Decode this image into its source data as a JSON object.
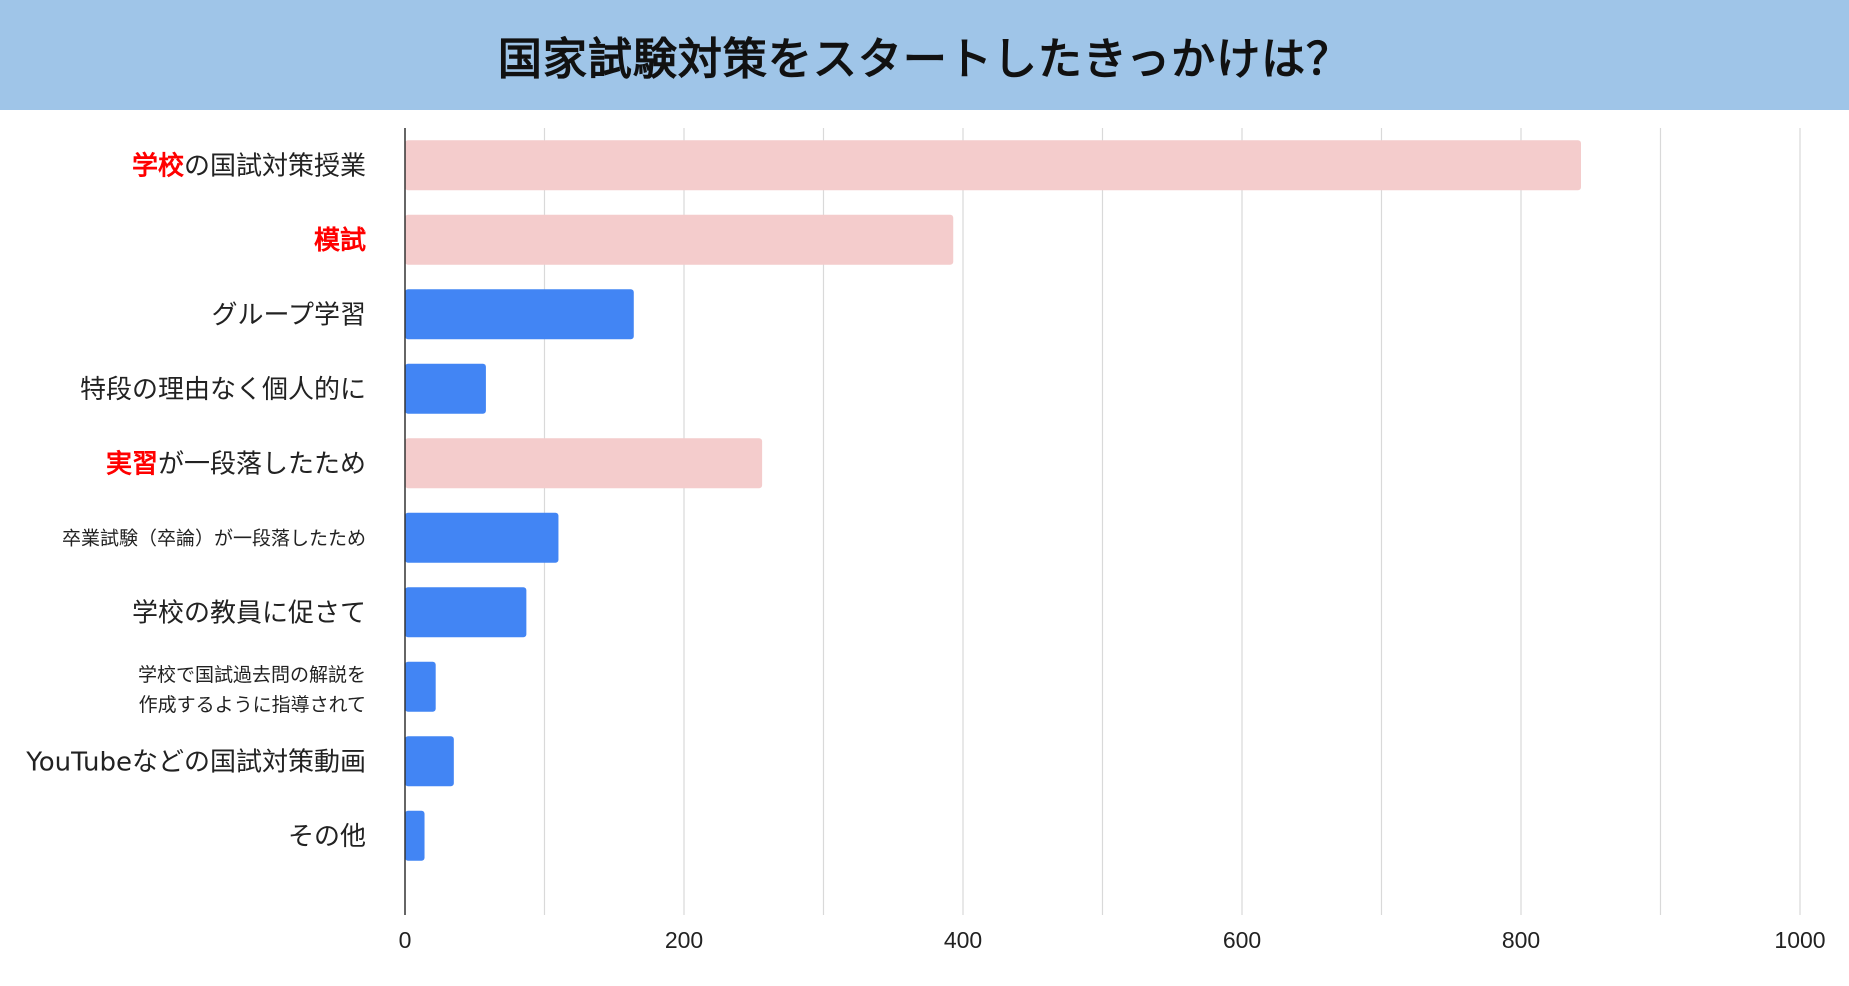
{
  "chart_data": {
    "type": "bar",
    "orientation": "horizontal",
    "title": "国家試験対策をスタートしたきっかけは？",
    "xlabel": "",
    "ylabel": "",
    "xlim": [
      0,
      1000
    ],
    "ticks": [
      0,
      200,
      400,
      600,
      800,
      1000
    ],
    "grid": true,
    "highlight_color": "#f4cccc",
    "normal_color": "#4285f4",
    "emphasis_text_color": "#ff0000",
    "categories": [
      {
        "segments": [
          {
            "text": "学校",
            "emphasis": true
          },
          {
            "text": "の国試対策授業",
            "emphasis": false
          }
        ],
        "value": 843,
        "highlight": true,
        "size": "normal"
      },
      {
        "segments": [
          {
            "text": "模試",
            "emphasis": true
          }
        ],
        "value": 393,
        "highlight": true,
        "size": "normal"
      },
      {
        "segments": [
          {
            "text": "グループ学習",
            "emphasis": false
          }
        ],
        "value": 164,
        "highlight": false,
        "size": "normal"
      },
      {
        "segments": [
          {
            "text": "特段の理由なく個人的に",
            "emphasis": false
          }
        ],
        "value": 58,
        "highlight": false,
        "size": "normal"
      },
      {
        "segments": [
          {
            "text": "実習",
            "emphasis": true
          },
          {
            "text": "が一段落したため",
            "emphasis": false
          }
        ],
        "value": 256,
        "highlight": true,
        "size": "normal"
      },
      {
        "segments": [
          {
            "text": "卒業試験（卒論）が一段落したため",
            "emphasis": false
          }
        ],
        "value": 110,
        "highlight": false,
        "size": "small"
      },
      {
        "segments": [
          {
            "text": "学校の教員に促さて",
            "emphasis": false
          }
        ],
        "value": 87,
        "highlight": false,
        "size": "normal"
      },
      {
        "lines": [
          "学校で国試過去問の解説を",
          "作成するように指導されて"
        ],
        "value": 22,
        "highlight": false,
        "size": "small"
      },
      {
        "segments": [
          {
            "text": "YouTubeなどの国試対策動画",
            "emphasis": false
          }
        ],
        "value": 35,
        "highlight": false,
        "size": "normal"
      },
      {
        "segments": [
          {
            "text": "その他",
            "emphasis": false
          }
        ],
        "value": 14,
        "highlight": false,
        "size": "normal"
      }
    ]
  }
}
